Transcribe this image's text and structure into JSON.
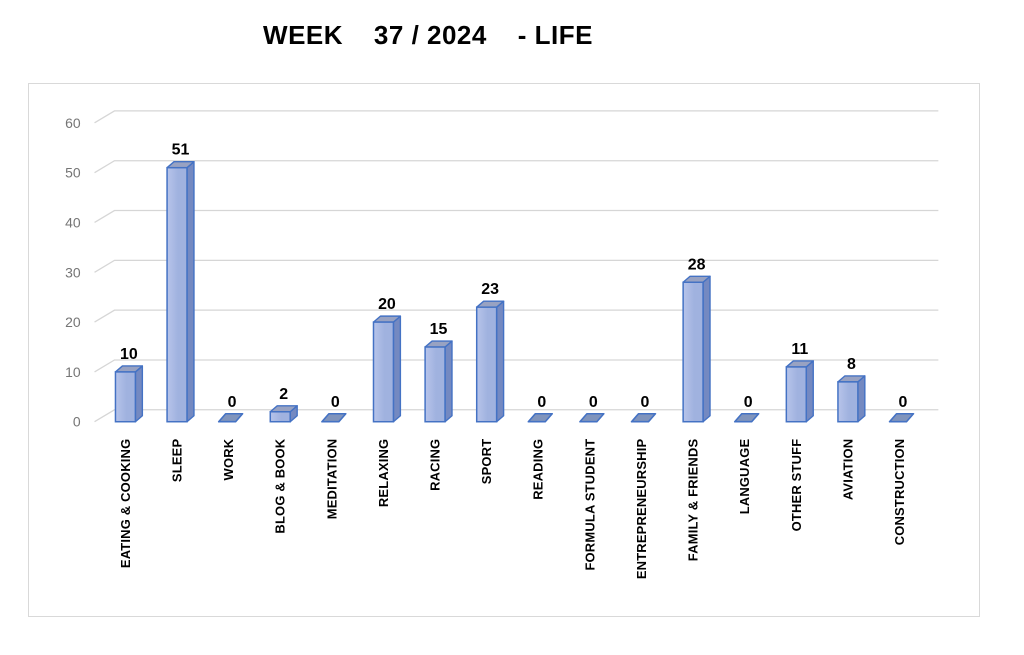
{
  "title": "WEEK    37 / 2024    - LIFE",
  "chart_data": {
    "type": "bar",
    "style": "3d-column",
    "title": "WEEK 37 / 2024 - LIFE",
    "categories": [
      "EATING & COOKING",
      "SLEEP",
      "WORK",
      "BLOG & BOOK",
      "MEDITATION",
      "RELAXING",
      "RACING",
      "SPORT",
      "READING",
      "FORMULA STUDENT",
      "ENTREPRENEURSHIP",
      "FAMILY & FRIENDS",
      "LANGUAGE",
      "OTHER STUFF",
      "AVIATION",
      "CONSTRUCTION"
    ],
    "values": [
      10,
      51,
      0,
      2,
      0,
      20,
      15,
      23,
      0,
      0,
      0,
      28,
      0,
      11,
      8,
      0
    ],
    "xlabel": "",
    "ylabel": "",
    "ylim": [
      0,
      60
    ],
    "yticks": [
      0,
      10,
      20,
      30,
      40,
      50,
      60
    ],
    "grid": true,
    "legend": false,
    "data_labels": true,
    "colors": {
      "bar_front_light": "#b7c4ea",
      "bar_front": "#a0b2df",
      "bar_side": "#7489c1",
      "bar_top": "#98a2c2",
      "bar_edge": "#4472c4",
      "zero_bar_fill": "#8094bc",
      "gridline": "#d6d6d6",
      "axis_label": "#757575",
      "value_label": "#000000",
      "category_label": "#000000",
      "frame_border": "#d9d9d9",
      "background": "#ffffff"
    }
  }
}
